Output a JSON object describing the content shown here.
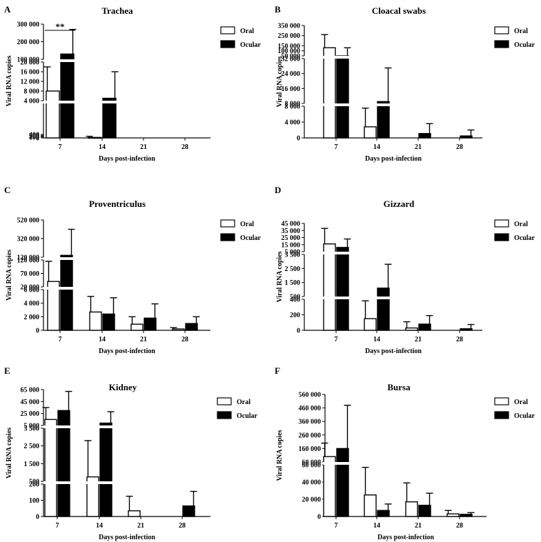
{
  "legend": {
    "oral": "Oral",
    "ocular": "Ocular"
  },
  "chart_data": [
    {
      "letter": "A",
      "title": "Trachea",
      "type": "bar",
      "xlabel": "Days post-infection",
      "ylabel": "Viral RNA copies",
      "categories": [
        "7",
        "14",
        "21",
        "28"
      ],
      "series": [
        {
          "name": "Oral",
          "values": [
            8000,
            55,
            0,
            0
          ],
          "err": [
            18000,
            190,
            0,
            0
          ]
        },
        {
          "name": "Ocular",
          "values": [
            130000,
            5000,
            0,
            0
          ],
          "err": [
            270000,
            16000,
            0,
            0
          ]
        }
      ],
      "segments": [
        {
          "lo": 0,
          "hi": 4000,
          "ticks": [
            0,
            100,
            200,
            300,
            400
          ],
          "tick_labels": [
            "0",
            "100",
            "200",
            "300",
            "400"
          ]
        },
        {
          "lo": 4000,
          "hi": 20000,
          "ticks": [
            4000,
            8000,
            12000,
            16000,
            20000
          ],
          "tick_labels": [
            "4 000",
            "8 000",
            "12 000",
            "16 000",
            "20 000"
          ]
        },
        {
          "lo": 100000,
          "hi": 300000,
          "ticks": [
            100000,
            200000,
            300000
          ],
          "tick_labels": [
            "100 000",
            "200 000",
            "300 000"
          ]
        }
      ],
      "annotation": {
        "text": "**",
        "between": [
          0,
          1
        ]
      }
    },
    {
      "letter": "B",
      "title": "Cloacal swabs",
      "type": "bar",
      "xlabel": "Days post-infection",
      "ylabel": "Viral RNA copies",
      "categories": [
        "7",
        "14",
        "21",
        "28"
      ],
      "series": [
        {
          "name": "Oral",
          "values": [
            130000,
            2800,
            0,
            0
          ],
          "err": [
            260000,
            7500,
            0,
            0
          ]
        },
        {
          "name": "Ocular",
          "values": [
            50000,
            9000,
            1100,
            500
          ],
          "err": [
            130000,
            27000,
            3600,
            2000
          ]
        }
      ],
      "segments": [
        {
          "lo": 0,
          "hi": 8000,
          "ticks": [
            0,
            4000,
            8000
          ],
          "tick_labels": [
            "0",
            "4 000",
            "8 000"
          ]
        },
        {
          "lo": 8000,
          "hi": 32000,
          "ticks": [
            8000,
            16000,
            24000,
            32000
          ],
          "tick_labels": [
            "8 000",
            "16 000",
            "24 000",
            "32 000"
          ]
        },
        {
          "lo": 50000,
          "hi": 350000,
          "ticks": [
            50000,
            100000,
            150000,
            250000,
            350000
          ],
          "tick_labels": [
            "50 000",
            "100 000",
            "150 000",
            "250 000",
            "350 000"
          ]
        }
      ]
    },
    {
      "letter": "C",
      "title": "Proventriculus",
      "type": "bar",
      "xlabel": "Days post-infection",
      "ylabel": "Viral RNA copies",
      "categories": [
        "7",
        "14",
        "21",
        "28"
      ],
      "series": [
        {
          "name": "Oral",
          "values": [
            40000,
            2700,
            900,
            200
          ],
          "err": [
            115000,
            5000,
            2000,
            400
          ]
        },
        {
          "name": "Ocular",
          "values": [
            140000,
            2400,
            1800,
            1000
          ],
          "err": [
            420000,
            4800,
            3900,
            2000
          ]
        }
      ],
      "segments": [
        {
          "lo": 0,
          "hi": 6000,
          "ticks": [
            0,
            2000,
            4000,
            6000
          ],
          "tick_labels": [
            "0",
            "2 000",
            "4 000",
            "6 000"
          ]
        },
        {
          "lo": 20000,
          "hi": 120000,
          "ticks": [
            20000,
            70000,
            120000
          ],
          "tick_labels": [
            "20 000",
            "70 000",
            "120 000"
          ]
        },
        {
          "lo": 120000,
          "hi": 520000,
          "ticks": [
            120000,
            320000,
            520000
          ],
          "tick_labels": [
            "120 000",
            "320 000",
            "520 000"
          ]
        }
      ]
    },
    {
      "letter": "D",
      "title": "Gizzard",
      "type": "bar",
      "xlabel": "Days post-infection",
      "ylabel": "Viral RNA copies",
      "categories": [
        "7",
        "14",
        "21",
        "28"
      ],
      "series": [
        {
          "name": "Oral",
          "values": [
            16000,
            150,
            30,
            0
          ],
          "err": [
            38000,
            380,
            110,
            0
          ]
        },
        {
          "name": "Ocular",
          "values": [
            11000,
            1100,
            80,
            20
          ],
          "err": [
            23000,
            2800,
            190,
            75
          ]
        }
      ],
      "segments": [
        {
          "lo": 0,
          "hi": 400,
          "ticks": [
            0,
            200,
            400
          ],
          "tick_labels": [
            "0",
            "200",
            "400"
          ]
        },
        {
          "lo": 500,
          "hi": 3500,
          "ticks": [
            500,
            1500,
            2500,
            3500
          ],
          "tick_labels": [
            "500",
            "1 500",
            "2 500",
            "3 500"
          ]
        },
        {
          "lo": 5000,
          "hi": 45000,
          "ticks": [
            5000,
            15000,
            25000,
            35000,
            45000
          ],
          "tick_labels": [
            "5 000",
            "15 000",
            "25 000",
            "35 000",
            "45 000"
          ]
        }
      ]
    },
    {
      "letter": "E",
      "title": "Kidney",
      "type": "bar",
      "xlabel": "Days post-infection",
      "ylabel": "Viral RNA copies",
      "categories": [
        "7",
        "14",
        "21",
        "28"
      ],
      "series": [
        {
          "name": "Oral",
          "values": [
            15000,
            750,
            35,
            0
          ],
          "err": [
            35000,
            2800,
            125,
            0
          ]
        },
        {
          "name": "Ocular",
          "values": [
            30000,
            9000,
            0,
            65
          ],
          "err": [
            62000,
            28000,
            0,
            155
          ]
        }
      ],
      "segments": [
        {
          "lo": 0,
          "hi": 200,
          "ticks": [
            0,
            100,
            200
          ],
          "tick_labels": [
            "0",
            "100",
            "200"
          ]
        },
        {
          "lo": 500,
          "hi": 3500,
          "ticks": [
            500,
            1500,
            2500,
            3500
          ],
          "tick_labels": [
            "500",
            "1 500",
            "2 500",
            "3 500"
          ]
        },
        {
          "lo": 5000,
          "hi": 65000,
          "ticks": [
            5000,
            25000,
            45000,
            65000
          ],
          "tick_labels": [
            "5 000",
            "25 000",
            "45 000",
            "65 000"
          ]
        }
      ]
    },
    {
      "letter": "F",
      "title": "Bursa",
      "type": "bar",
      "xlabel": "Days post-infection",
      "ylabel": "Viral RNA copies",
      "categories": [
        "7",
        "14",
        "21",
        "28"
      ],
      "series": [
        {
          "name": "Oral",
          "values": [
            100000,
            25000,
            17000,
            3000
          ],
          "err": [
            200000,
            57000,
            39000,
            7000
          ]
        },
        {
          "name": "Ocular",
          "values": [
            160000,
            7000,
            13000,
            2500
          ],
          "err": [
            480000,
            14500,
            27000,
            4500
          ]
        }
      ],
      "segments": [
        {
          "lo": 0,
          "hi": 60000,
          "ticks": [
            0,
            20000,
            40000,
            60000
          ],
          "tick_labels": [
            "0",
            "20 000",
            "40 000",
            "60 000"
          ]
        },
        {
          "lo": 60000,
          "hi": 560000,
          "ticks": [
            60000,
            160000,
            260000,
            360000,
            460000,
            560000
          ],
          "tick_labels": [
            "60 000",
            "160 000",
            "260 000",
            "360 000",
            "460 000",
            "560 000"
          ]
        }
      ]
    }
  ]
}
